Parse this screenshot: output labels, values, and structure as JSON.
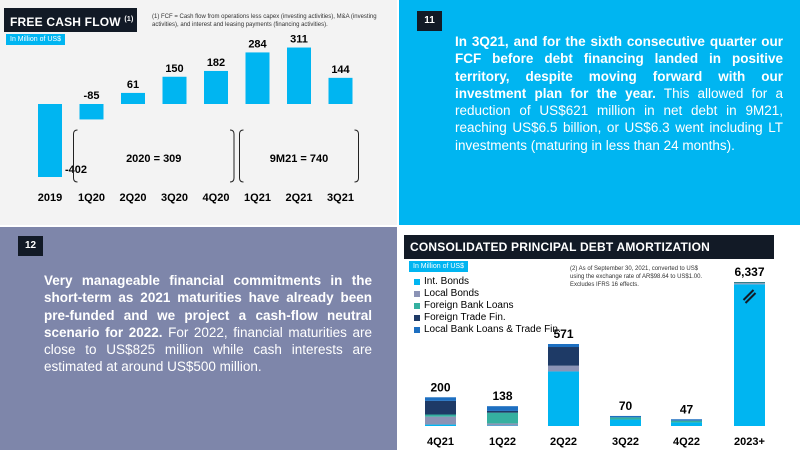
{
  "fcf": {
    "title": "FREE CASH FLOW",
    "title_sup": "(1)",
    "unit": "In Million of US$",
    "footnote": "(1) FCF = Cash flow from operations less capex (investing activities), M&A (investing activities), and interest and leasing payments (financing activities).",
    "groups": [
      {
        "label": "2020 = 309"
      },
      {
        "label": "9M21 = 740"
      }
    ]
  },
  "panel11": {
    "number": "11",
    "bold": "In 3Q21, and for the sixth consecutive quarter our FCF before debt financing landed in positive territory, despite moving forward with our investment plan for the year.",
    "regular": " This allowed for a reduction of US$621 million in net debt in 9M21, reaching US$6.5 billion, or US$6.3 went including LT investments (maturing in less than 24 months)."
  },
  "panel12": {
    "number": "12",
    "bold": "Very manageable financial commitments in the short-term as 2021 maturities have already been pre-funded and we project a cash-flow neutral scenario for 2022.",
    "regular": " For 2022, financial maturities are close to US$825 million while cash interests are estimated at around US$500 million."
  },
  "debt": {
    "title": "CONSOLIDATED PRINCIPAL DEBT AMORTIZATION SCHEDULE",
    "title_sup": "(2)",
    "unit": "In Million of US$",
    "footnote": "(2) As of September 30, 2021, converted to US$ using the exchange rate of AR$98.64 to US$1.00. Excludes IFRS 16 effects."
  },
  "colors": {
    "accent": "#00b5f1",
    "navy": "#121a26",
    "slate": "#7e86aa"
  },
  "chart_data": [
    {
      "type": "bar",
      "title": "FREE CASH FLOW",
      "categories": [
        "2019",
        "1Q20",
        "2Q20",
        "3Q20",
        "4Q20",
        "1Q21",
        "2Q21",
        "3Q21"
      ],
      "values": [
        -402,
        -85,
        61,
        150,
        182,
        284,
        311,
        144
      ],
      "value_labels": [
        "-402",
        "-85",
        "61",
        "150",
        "182",
        "284",
        "311",
        "144"
      ],
      "ylim": [
        -420,
        330
      ],
      "grid": false,
      "color": "#00b5f1"
    },
    {
      "type": "bar",
      "stacked": true,
      "title": "CONSOLIDATED PRINCIPAL DEBT AMORTIZATION SCHEDULE",
      "categories": [
        "4Q21",
        "1Q22",
        "2Q22",
        "3Q22",
        "4Q22",
        "2023+"
      ],
      "totals": [
        200,
        138,
        571,
        70,
        47,
        6337
      ],
      "total_labels": [
        "200",
        "138",
        "571",
        "70",
        "47",
        "6,337"
      ],
      "broken_axis_category": "2023+",
      "legend_position": "top-left",
      "series": [
        {
          "name": "Int. Bonds",
          "color": "#00b5f1",
          "values": [
            10,
            3,
            380,
            45,
            25,
            6237
          ]
        },
        {
          "name": "Local Bonds",
          "color": "#8b93b5",
          "values": [
            55,
            15,
            40,
            0,
            0,
            50
          ]
        },
        {
          "name": "Foreign Bank Loans",
          "color": "#35b0a0",
          "values": [
            15,
            75,
            0,
            15,
            12,
            30
          ]
        },
        {
          "name": "Foreign Trade Fin.",
          "color": "#1e3a66",
          "values": [
            95,
            12,
            130,
            0,
            0,
            20
          ]
        },
        {
          "name": "Local Bank Loans & Trade Fin.",
          "color": "#1d6fc1",
          "values": [
            25,
            33,
            21,
            10,
            10,
            0
          ]
        }
      ]
    }
  ]
}
